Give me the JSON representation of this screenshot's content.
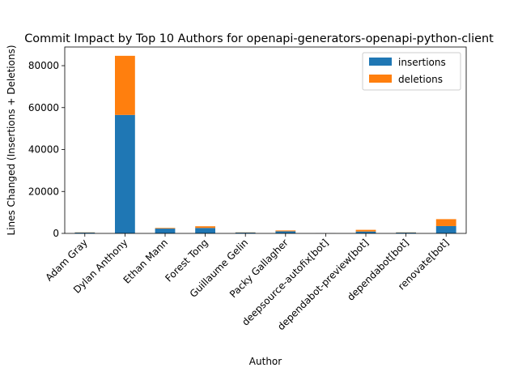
{
  "chart_data": {
    "type": "bar",
    "stacked": true,
    "title": "Commit Impact by Top 10 Authors for openapi-generators-openapi-python-client",
    "xlabel": "Author",
    "ylabel": "Lines Changed (Insertions + Deletions)",
    "categories": [
      "Adam Gray",
      "Dylan Anthony",
      "Ethan Mann",
      "Forest Tong",
      "Guillaume Gelin",
      "Packy Gallagher",
      "deepsource-autofix[bot]",
      "dependabot-preview[bot]",
      "dependabot[bot]",
      "renovate[bot]"
    ],
    "series": [
      {
        "name": "insertions",
        "color": "#1f77b4",
        "values": [
          400,
          56500,
          2300,
          2600,
          400,
          1000,
          50,
          900,
          400,
          3500
        ]
      },
      {
        "name": "deletions",
        "color": "#ff7f0e",
        "values": [
          100,
          28200,
          300,
          800,
          100,
          400,
          20,
          800,
          100,
          3300
        ]
      }
    ],
    "ylim": [
      0,
      88900
    ],
    "yticks": [
      0,
      20000,
      40000,
      60000,
      80000
    ],
    "grid": false,
    "legend_position": "top-right"
  }
}
